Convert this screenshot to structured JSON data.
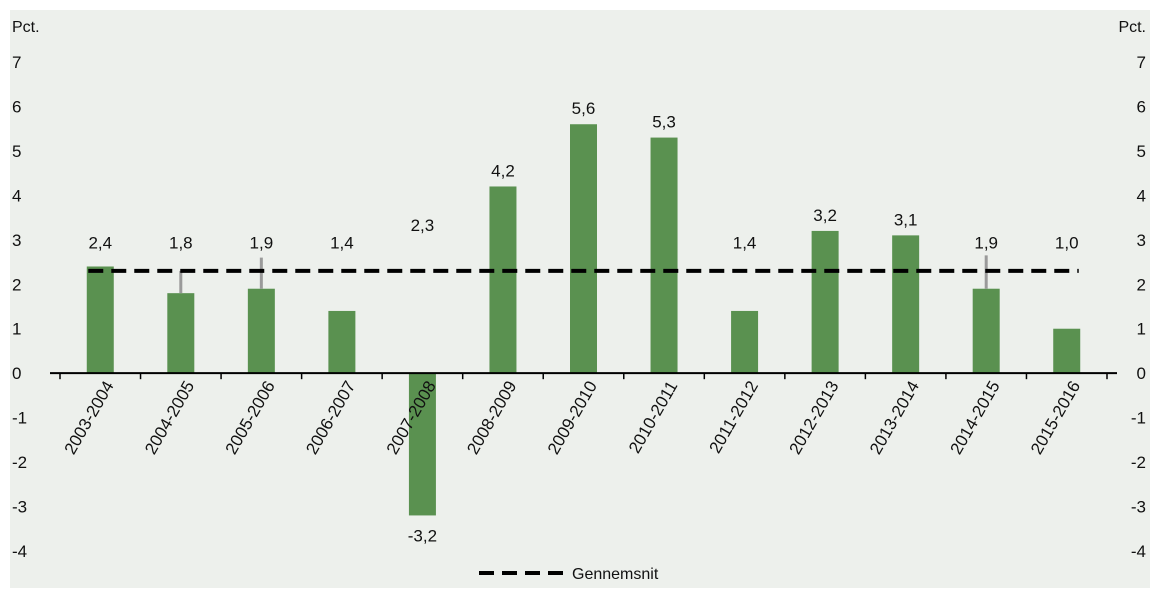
{
  "chart_data": {
    "type": "bar",
    "categories": [
      "2003-2004",
      "2004-2005",
      "2005-2006",
      "2006-2007",
      "2007-2008",
      "2008-2009",
      "2009-2010",
      "2010-2011",
      "2011-2012",
      "2012-2013",
      "2013-2014",
      "2014-2015",
      "2015-2016"
    ],
    "values": [
      2.4,
      1.8,
      1.9,
      1.4,
      -3.2,
      4.2,
      5.6,
      5.3,
      1.4,
      3.2,
      3.1,
      1.9,
      1.0
    ],
    "value_labels": [
      "2,4",
      "1,8",
      "1,9",
      "1,4",
      "-3,2",
      "4,2",
      "5,6",
      "5,3",
      "1,4",
      "3,2",
      "3,1",
      "1,9",
      "1,0"
    ],
    "average": {
      "name": "Gennemsnit",
      "value": 2.3,
      "label": "2,3"
    },
    "error_bars": [
      {
        "category": "2004-2005",
        "from": 1.8,
        "to": 2.3
      },
      {
        "category": "2005-2006",
        "from": 1.9,
        "to": 2.6
      },
      {
        "category": "2014-2015",
        "from": 1.9,
        "to": 2.65
      }
    ],
    "y_left_unit": "Pct.",
    "y_right_unit": "Pct.",
    "ylim": [
      -4,
      7
    ],
    "yticks": [
      -4,
      -3,
      -2,
      -1,
      0,
      1,
      2,
      3,
      4,
      5,
      6,
      7
    ],
    "legend": [
      "Gennemsnit"
    ],
    "legend_position": "bottom-center",
    "grid": false,
    "colors": {
      "bar": "#5a9150",
      "average_line": "#000000",
      "error_bar": "#9a9a9a",
      "background": "#edf0ec"
    }
  }
}
